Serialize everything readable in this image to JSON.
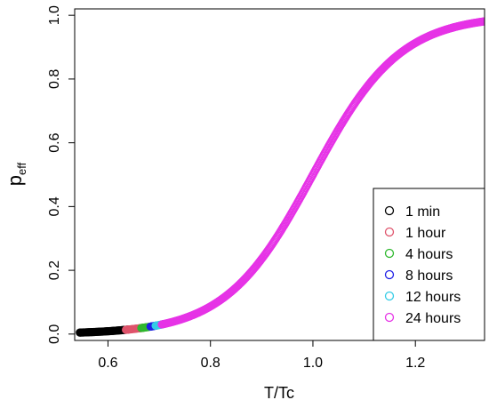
{
  "chart_data": {
    "type": "scatter",
    "title": "",
    "xlabel": "T/Tc",
    "ylabel": "p",
    "ylabel_sub": "eff",
    "xlim": [
      0.535,
      1.335
    ],
    "ylim": [
      -0.02,
      1.02
    ],
    "x_ticks": [
      0.6,
      0.8,
      1.0,
      1.2
    ],
    "x_tick_labels": [
      "0.6",
      "0.8",
      "1.0",
      "1.2"
    ],
    "y_ticks": [
      0.0,
      0.2,
      0.4,
      0.6,
      0.8,
      1.0
    ],
    "y_tick_labels": [
      "0.0",
      "0.2",
      "0.4",
      "0.6",
      "0.8",
      "1.0"
    ],
    "grid": false,
    "legend_position": "bottom-right",
    "marker": "open-circle",
    "curve_model": "logistic",
    "curve_center": 1.0,
    "curve_scale": 0.085,
    "series": [
      {
        "name": "1 min",
        "color": "#000000",
        "x_range": [
          0.545,
          0.64
        ]
      },
      {
        "name": "1 hour",
        "color": "#DF536B",
        "x_range": [
          0.635,
          0.67
        ]
      },
      {
        "name": "4 hours",
        "color": "#2EB82E",
        "x_range": [
          0.665,
          0.685
        ]
      },
      {
        "name": "8 hours",
        "color": "#1F1FE6",
        "x_range": [
          0.683,
          0.695
        ]
      },
      {
        "name": "12 hours",
        "color": "#33CCE6",
        "x_range": [
          0.693,
          0.71
        ]
      },
      {
        "name": "24 hours",
        "color": "#E633E6",
        "x_range": [
          0.705,
          1.335
        ]
      }
    ]
  }
}
